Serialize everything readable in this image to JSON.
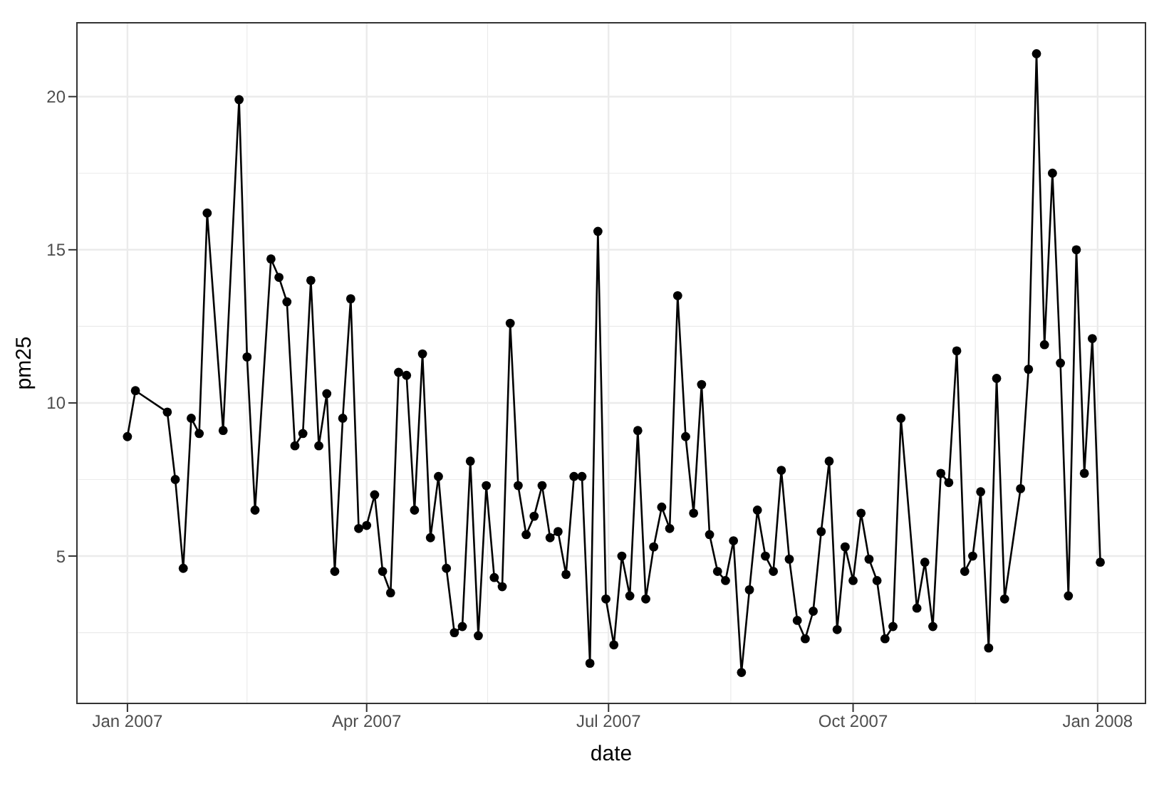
{
  "chart_data": {
    "type": "line",
    "xlabel": "date",
    "ylabel": "pm25",
    "marker": "circle",
    "line_style": "solid",
    "grid": true,
    "legend": false,
    "xlim": [
      "2006-12-13",
      "2008-01-19"
    ],
    "xticks": [
      {
        "value": "2007-01-01",
        "label": "Jan 2007"
      },
      {
        "value": "2007-04-01",
        "label": "Apr 2007"
      },
      {
        "value": "2007-07-01",
        "label": "Jul 2007"
      },
      {
        "value": "2007-10-01",
        "label": "Oct 2007"
      },
      {
        "value": "2008-01-01",
        "label": "Jan 2008"
      }
    ],
    "ylim": [
      0.19,
      22.41
    ],
    "yticks": [
      5,
      10,
      15,
      20
    ],
    "x": [
      "2007-01-01",
      "2007-01-04",
      "2007-01-16",
      "2007-01-19",
      "2007-01-22",
      "2007-01-25",
      "2007-01-28",
      "2007-01-31",
      "2007-02-06",
      "2007-02-12",
      "2007-02-15",
      "2007-02-18",
      "2007-02-24",
      "2007-02-27",
      "2007-03-02",
      "2007-03-05",
      "2007-03-08",
      "2007-03-11",
      "2007-03-14",
      "2007-03-17",
      "2007-03-20",
      "2007-03-23",
      "2007-03-26",
      "2007-03-29",
      "2007-04-01",
      "2007-04-04",
      "2007-04-07",
      "2007-04-10",
      "2007-04-13",
      "2007-04-16",
      "2007-04-19",
      "2007-04-22",
      "2007-04-25",
      "2007-04-28",
      "2007-05-01",
      "2007-05-04",
      "2007-05-07",
      "2007-05-10",
      "2007-05-13",
      "2007-05-16",
      "2007-05-19",
      "2007-05-22",
      "2007-05-25",
      "2007-05-28",
      "2007-05-31",
      "2007-06-03",
      "2007-06-06",
      "2007-06-09",
      "2007-06-12",
      "2007-06-15",
      "2007-06-18",
      "2007-06-21",
      "2007-06-24",
      "2007-06-27",
      "2007-06-30",
      "2007-07-03",
      "2007-07-06",
      "2007-07-09",
      "2007-07-12",
      "2007-07-15",
      "2007-07-18",
      "2007-07-21",
      "2007-07-24",
      "2007-07-27",
      "2007-07-30",
      "2007-08-02",
      "2007-08-05",
      "2007-08-08",
      "2007-08-11",
      "2007-08-14",
      "2007-08-17",
      "2007-08-20",
      "2007-08-23",
      "2007-08-26",
      "2007-08-29",
      "2007-09-01",
      "2007-09-04",
      "2007-09-07",
      "2007-09-10",
      "2007-09-13",
      "2007-09-16",
      "2007-09-19",
      "2007-09-22",
      "2007-09-25",
      "2007-09-28",
      "2007-10-01",
      "2007-10-04",
      "2007-10-07",
      "2007-10-10",
      "2007-10-13",
      "2007-10-16",
      "2007-10-19",
      "2007-10-25",
      "2007-10-28",
      "2007-10-31",
      "2007-11-03",
      "2007-11-06",
      "2007-11-09",
      "2007-11-12",
      "2007-11-15",
      "2007-11-18",
      "2007-11-21",
      "2007-11-24",
      "2007-11-27",
      "2007-12-03",
      "2007-12-06",
      "2007-12-09",
      "2007-12-12",
      "2007-12-15",
      "2007-12-18",
      "2007-12-21",
      "2007-12-24",
      "2007-12-27",
      "2007-12-30",
      "2008-01-02"
    ],
    "values": [
      8.9,
      10.4,
      9.7,
      7.5,
      4.6,
      9.5,
      9.0,
      16.2,
      9.1,
      19.9,
      11.5,
      6.5,
      14.7,
      14.1,
      13.3,
      8.6,
      9.0,
      14.0,
      8.6,
      10.3,
      4.5,
      9.5,
      13.4,
      5.9,
      6.0,
      7.0,
      4.5,
      3.8,
      11.0,
      10.9,
      6.5,
      11.6,
      5.6,
      7.6,
      4.6,
      2.5,
      2.7,
      8.1,
      2.4,
      7.3,
      4.3,
      4.0,
      12.6,
      7.3,
      5.7,
      6.3,
      7.3,
      5.6,
      5.8,
      4.4,
      7.6,
      7.6,
      1.5,
      15.6,
      3.6,
      2.1,
      5.0,
      3.7,
      9.1,
      3.6,
      5.3,
      6.6,
      5.9,
      13.5,
      8.9,
      6.4,
      10.6,
      5.7,
      4.5,
      4.2,
      5.5,
      1.2,
      3.9,
      6.5,
      5.0,
      4.5,
      7.8,
      4.9,
      2.9,
      2.3,
      3.2,
      5.8,
      8.1,
      2.6,
      5.3,
      4.2,
      6.4,
      4.9,
      4.2,
      2.3,
      2.7,
      9.5,
      3.3,
      4.8,
      2.7,
      7.7,
      7.4,
      11.7,
      4.5,
      5.0,
      7.1,
      2.0,
      10.8,
      3.6,
      7.2,
      11.1,
      21.4,
      11.9,
      17.5,
      11.3,
      3.7,
      15.0,
      7.7,
      12.1,
      4.8
    ],
    "color": "#000000"
  }
}
